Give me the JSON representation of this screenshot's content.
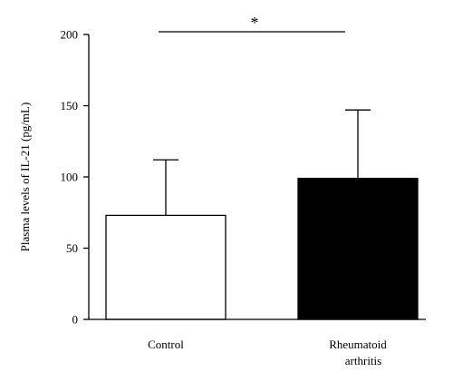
{
  "chart_data": {
    "type": "bar",
    "categories": [
      "Control",
      "Rheumatoid arthritis"
    ],
    "category_label_lines": [
      [
        "Control"
      ],
      [
        "Rheumatoid",
        "arthritis"
      ]
    ],
    "values": [
      73,
      99
    ],
    "error_upper": [
      112,
      147
    ],
    "bar_colors": [
      "#ffffff",
      "#000000"
    ],
    "ylabel": "Plasma levels of IL-21 (pg/mL)",
    "ylim": [
      0,
      200
    ],
    "yticks": [
      "0",
      "50",
      "100",
      "150",
      "200"
    ],
    "significance": "*",
    "grid": false
  }
}
